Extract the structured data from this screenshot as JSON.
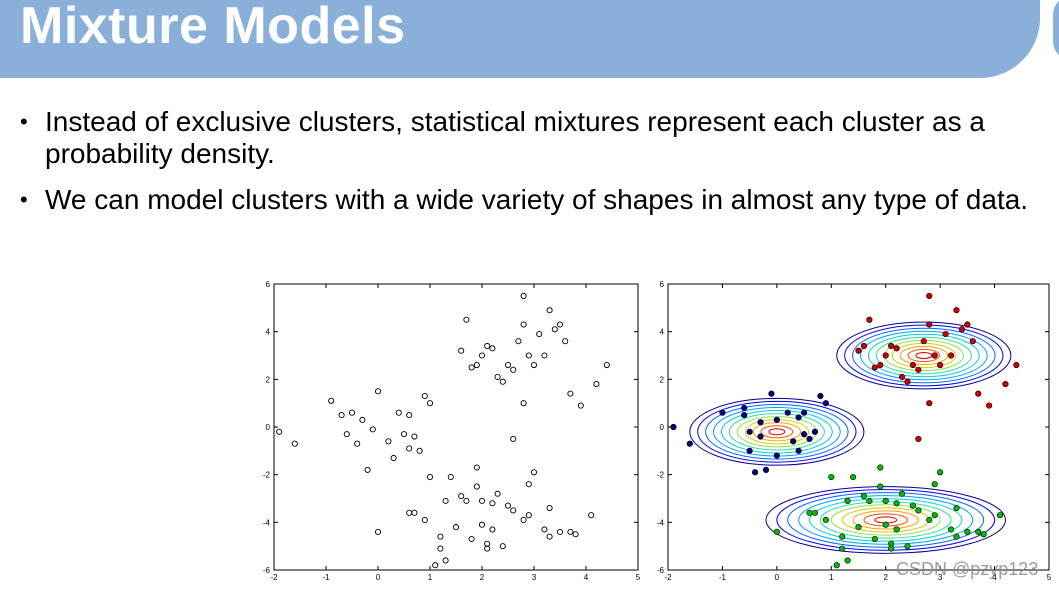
{
  "slide": {
    "title": "Mixture Models",
    "bullets": [
      "Instead of exclusive clusters, statistical mixtures represent each cluster as a probability density.",
      "We can model clusters with a wide variety of shapes in almost any type of data."
    ],
    "watermark": "CSDN @pzyp123"
  },
  "chart_data": [
    {
      "type": "scatter",
      "title": "",
      "xlabel": "",
      "ylabel": "",
      "xlim": [
        -2,
        5
      ],
      "ylim": [
        -6,
        6
      ],
      "xticks": [
        "-2",
        "-1",
        "0",
        "1",
        "2",
        "3",
        "4",
        "5"
      ],
      "yticks": [
        "-6",
        "-4",
        "-2",
        "0",
        "2",
        "4",
        "6"
      ],
      "marker": "hollow-circle",
      "color": "#000000",
      "points": [
        [
          -1.9,
          -0.2
        ],
        [
          -1.6,
          -0.7
        ],
        [
          -0.9,
          1.1
        ],
        [
          -0.7,
          0.5
        ],
        [
          -0.6,
          -0.3
        ],
        [
          -0.5,
          0.6
        ],
        [
          -0.4,
          -0.7
        ],
        [
          -0.3,
          0.3
        ],
        [
          -0.2,
          -1.8
        ],
        [
          -0.1,
          -0.1
        ],
        [
          0.0,
          1.5
        ],
        [
          0.2,
          -0.6
        ],
        [
          0.3,
          -1.3
        ],
        [
          0.4,
          0.6
        ],
        [
          0.5,
          -0.3
        ],
        [
          0.6,
          -0.9
        ],
        [
          0.6,
          0.5
        ],
        [
          0.7,
          -0.4
        ],
        [
          0.8,
          -1.0
        ],
        [
          0.9,
          1.3
        ],
        [
          1.0,
          1.0
        ],
        [
          0.0,
          -4.4
        ],
        [
          0.6,
          -3.6
        ],
        [
          0.7,
          -3.6
        ],
        [
          0.9,
          -3.9
        ],
        [
          1.0,
          -2.1
        ],
        [
          1.1,
          -5.8
        ],
        [
          1.2,
          -5.1
        ],
        [
          1.2,
          -4.6
        ],
        [
          1.3,
          -3.1
        ],
        [
          1.3,
          -5.6
        ],
        [
          1.4,
          -2.1
        ],
        [
          1.5,
          -4.2
        ],
        [
          1.6,
          -2.9
        ],
        [
          1.7,
          -3.1
        ],
        [
          1.8,
          -4.7
        ],
        [
          1.9,
          -2.5
        ],
        [
          1.9,
          -1.7
        ],
        [
          2.0,
          -4.1
        ],
        [
          2.0,
          -3.1
        ],
        [
          2.1,
          -4.9
        ],
        [
          2.1,
          -5.1
        ],
        [
          2.2,
          -4.3
        ],
        [
          2.2,
          -3.2
        ],
        [
          2.3,
          -2.8
        ],
        [
          2.4,
          -5.0
        ],
        [
          2.5,
          -3.3
        ],
        [
          2.6,
          -3.5
        ],
        [
          2.8,
          -3.9
        ],
        [
          2.9,
          -2.4
        ],
        [
          2.9,
          -3.7
        ],
        [
          3.0,
          -1.9
        ],
        [
          3.2,
          -4.3
        ],
        [
          3.3,
          -4.6
        ],
        [
          3.3,
          -3.4
        ],
        [
          3.5,
          -4.4
        ],
        [
          3.7,
          -4.4
        ],
        [
          3.8,
          -4.5
        ],
        [
          4.1,
          -3.7
        ],
        [
          1.6,
          3.2
        ],
        [
          1.7,
          4.5
        ],
        [
          1.8,
          2.5
        ],
        [
          1.9,
          2.6
        ],
        [
          2.0,
          3.0
        ],
        [
          2.1,
          3.4
        ],
        [
          2.2,
          3.3
        ],
        [
          2.3,
          2.1
        ],
        [
          2.4,
          1.9
        ],
        [
          2.5,
          2.6
        ],
        [
          2.6,
          2.4
        ],
        [
          2.7,
          3.6
        ],
        [
          2.8,
          4.3
        ],
        [
          2.8,
          5.5
        ],
        [
          2.9,
          3.0
        ],
        [
          3.0,
          2.6
        ],
        [
          3.1,
          3.9
        ],
        [
          3.2,
          3.0
        ],
        [
          3.3,
          4.9
        ],
        [
          3.4,
          4.1
        ],
        [
          3.5,
          4.3
        ],
        [
          3.6,
          3.6
        ],
        [
          3.7,
          1.4
        ],
        [
          3.9,
          0.9
        ],
        [
          4.2,
          1.8
        ],
        [
          4.4,
          2.6
        ],
        [
          2.6,
          -0.5
        ],
        [
          2.8,
          1.0
        ]
      ]
    },
    {
      "type": "scatter",
      "title": "",
      "xlabel": "",
      "ylabel": "",
      "xlim": [
        -2,
        5
      ],
      "ylim": [
        -6,
        6
      ],
      "xticks": [
        "-2",
        "-1",
        "0",
        "1",
        "2",
        "3",
        "4",
        "5"
      ],
      "yticks": [
        "-6",
        "-4",
        "-2",
        "0",
        "2",
        "4",
        "6"
      ],
      "marker": "filled-circle",
      "overlay": "gaussian-contours",
      "series": [
        {
          "color": "#000080",
          "center": [
            0,
            -0.2
          ],
          "radii": [
            1.6,
            1.4
          ],
          "points": [
            [
              -1.9,
              0.0
            ],
            [
              -1.6,
              -0.7
            ],
            [
              -1.0,
              0.6
            ],
            [
              -0.6,
              0.8
            ],
            [
              -0.6,
              0.5
            ],
            [
              -0.5,
              -0.2
            ],
            [
              -0.5,
              -1.0
            ],
            [
              -0.4,
              -1.9
            ],
            [
              -0.3,
              0.2
            ],
            [
              -0.3,
              -0.4
            ],
            [
              -0.2,
              -1.8
            ],
            [
              -0.1,
              1.4
            ],
            [
              0.0,
              0.3
            ],
            [
              0.0,
              -1.2
            ],
            [
              0.2,
              0.6
            ],
            [
              0.3,
              -0.6
            ],
            [
              0.4,
              0.4
            ],
            [
              0.4,
              -1.0
            ],
            [
              0.5,
              -0.3
            ],
            [
              0.6,
              -0.5
            ],
            [
              0.5,
              0.6
            ],
            [
              0.7,
              -0.2
            ],
            [
              0.8,
              1.3
            ],
            [
              0.9,
              1.0
            ]
          ]
        },
        {
          "color": "#cc0000",
          "center": [
            2.7,
            3.0
          ],
          "radii": [
            1.6,
            1.4
          ],
          "points": [
            [
              1.5,
              3.2
            ],
            [
              1.6,
              3.4
            ],
            [
              1.7,
              4.5
            ],
            [
              1.8,
              2.5
            ],
            [
              1.9,
              2.6
            ],
            [
              2.0,
              3.0
            ],
            [
              2.1,
              3.4
            ],
            [
              2.2,
              3.3
            ],
            [
              2.3,
              2.1
            ],
            [
              2.4,
              1.9
            ],
            [
              2.5,
              2.6
            ],
            [
              2.6,
              2.4
            ],
            [
              2.7,
              3.6
            ],
            [
              2.8,
              4.3
            ],
            [
              2.8,
              5.5
            ],
            [
              2.9,
              3.0
            ],
            [
              3.0,
              2.6
            ],
            [
              3.1,
              3.9
            ],
            [
              3.2,
              3.0
            ],
            [
              3.3,
              4.9
            ],
            [
              3.4,
              4.1
            ],
            [
              3.5,
              4.3
            ],
            [
              3.6,
              3.6
            ],
            [
              3.7,
              1.4
            ],
            [
              3.9,
              0.9
            ],
            [
              4.2,
              1.8
            ],
            [
              4.4,
              2.6
            ],
            [
              2.6,
              -0.5
            ],
            [
              2.8,
              1.0
            ]
          ]
        },
        {
          "color": "#00bb00",
          "center": [
            2.0,
            -3.9
          ],
          "radii": [
            2.2,
            1.4
          ],
          "points": [
            [
              0.0,
              -4.4
            ],
            [
              0.6,
              -3.6
            ],
            [
              0.7,
              -3.6
            ],
            [
              0.9,
              -3.9
            ],
            [
              1.0,
              -2.1
            ],
            [
              1.1,
              -5.8
            ],
            [
              1.2,
              -5.1
            ],
            [
              1.2,
              -4.6
            ],
            [
              1.3,
              -3.1
            ],
            [
              1.3,
              -5.6
            ],
            [
              1.4,
              -2.1
            ],
            [
              1.5,
              -4.2
            ],
            [
              1.6,
              -2.9
            ],
            [
              1.7,
              -3.1
            ],
            [
              1.8,
              -4.7
            ],
            [
              1.9,
              -2.5
            ],
            [
              1.9,
              -1.7
            ],
            [
              2.0,
              -4.1
            ],
            [
              2.0,
              -3.1
            ],
            [
              2.1,
              -4.9
            ],
            [
              2.1,
              -5.1
            ],
            [
              2.2,
              -4.3
            ],
            [
              2.2,
              -3.2
            ],
            [
              2.3,
              -2.8
            ],
            [
              2.4,
              -5.0
            ],
            [
              2.5,
              -3.3
            ],
            [
              2.6,
              -3.5
            ],
            [
              2.8,
              -3.9
            ],
            [
              2.9,
              -2.4
            ],
            [
              2.9,
              -3.7
            ],
            [
              3.0,
              -1.9
            ],
            [
              3.2,
              -4.3
            ],
            [
              3.3,
              -4.6
            ],
            [
              3.3,
              -3.4
            ],
            [
              3.5,
              -4.4
            ],
            [
              3.7,
              -4.4
            ],
            [
              3.8,
              -4.5
            ],
            [
              4.1,
              -3.7
            ]
          ]
        }
      ]
    }
  ]
}
